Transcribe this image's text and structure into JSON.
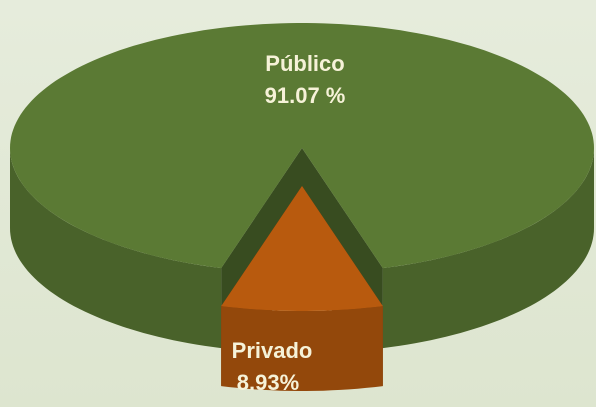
{
  "chart_data": {
    "type": "pie",
    "categories": [
      "Público",
      "Privado"
    ],
    "values": [
      91.07,
      8.93
    ],
    "value_labels": [
      "91.07 %",
      "8.93%"
    ],
    "colors": [
      "#5b7a34",
      "#b85a0e"
    ],
    "exploded": [
      false,
      true
    ]
  }
}
